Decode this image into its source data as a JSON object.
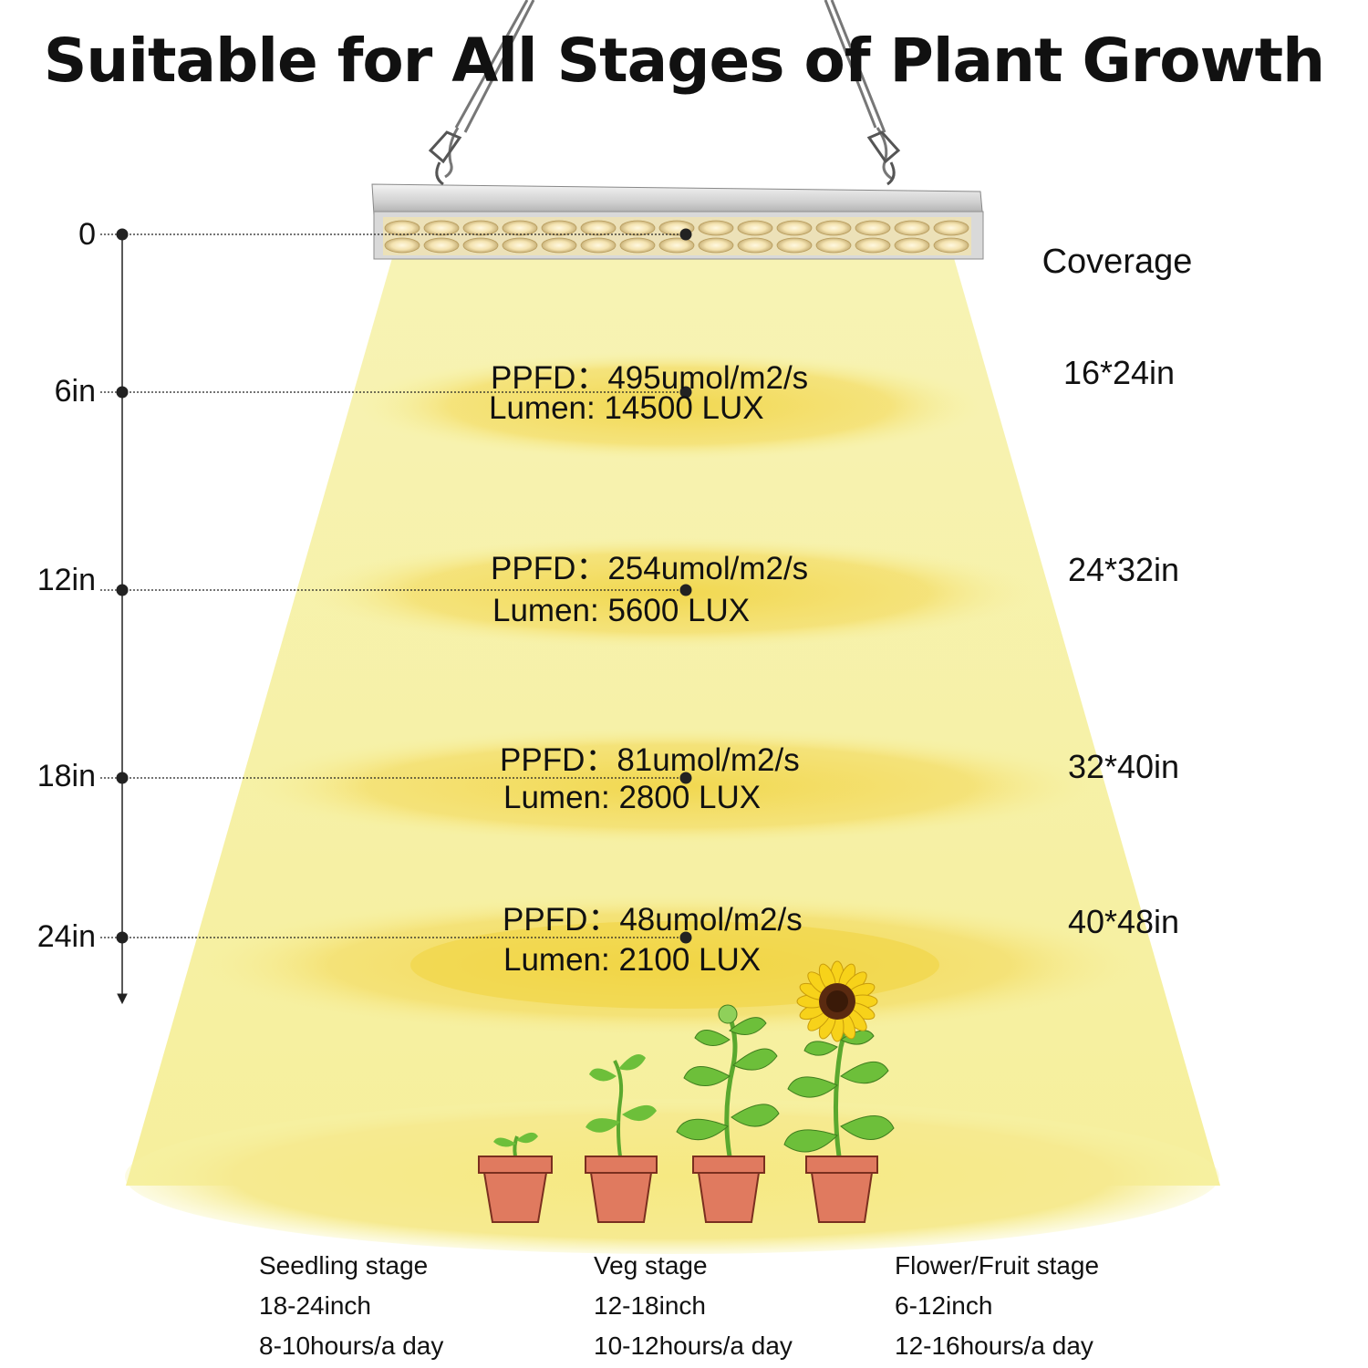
{
  "title": "Suitable for All Stages of Plant Growth",
  "coverage_header": "Coverage",
  "colors": {
    "light": "#f7f2a6",
    "pool": "#f3dd60",
    "pot": "#e07a5f",
    "stem": "#6dbf3a",
    "petal": "#f7d21a"
  },
  "levels": [
    {
      "distance": "0"
    },
    {
      "distance": "6in",
      "ppfd": "PPFD：495umol/m2/s",
      "lumen": "Lumen: 14500 LUX",
      "coverage": "16*24in"
    },
    {
      "distance": "12in",
      "ppfd": "PPFD：254umol/m2/s",
      "lumen": "Lumen: 5600 LUX",
      "coverage": "24*32in"
    },
    {
      "distance": "18in",
      "ppfd": "PPFD：81umol/m2/s",
      "lumen": "Lumen: 2800 LUX",
      "coverage": "32*40in"
    },
    {
      "distance": "24in",
      "ppfd": "PPFD：48umol/m2/s",
      "lumen": "Lumen: 2100 LUX",
      "coverage": "40*48in"
    }
  ],
  "stages": [
    {
      "name": "Seedling stage",
      "distance": "18-24inch",
      "hours": "8-10hours/a day"
    },
    {
      "name": "Veg stage",
      "distance": "12-18inch",
      "hours": "10-12hours/a day"
    },
    {
      "name": "Flower/Fruit stage",
      "distance": "6-12inch",
      "hours": "12-16hours/a day"
    }
  ]
}
